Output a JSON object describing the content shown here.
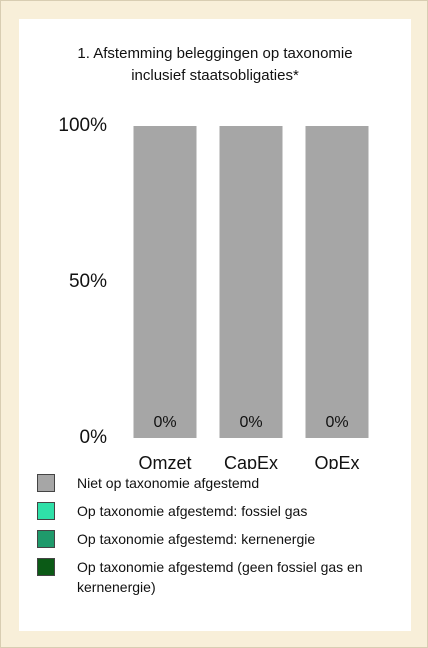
{
  "chart_data": {
    "type": "stacked_bar",
    "title": "1. Afstemming beleggingen op taxonomie inclusief staatsobligaties*",
    "categories": [
      "Omzet",
      "CapEx",
      "OpEx"
    ],
    "series": [
      {
        "name": "Niet op taxonomie afgestemd",
        "color": "#a6a6a6",
        "values": [
          100,
          100,
          100
        ]
      },
      {
        "name": "Op taxonomie afgestemd: fossiel gas",
        "color": "#2fe0a8",
        "values": [
          0,
          0,
          0
        ]
      },
      {
        "name": "Op taxonomie afgestemd: kernenergie",
        "color": "#1f9a6b",
        "values": [
          0,
          0,
          0
        ]
      },
      {
        "name": "Op taxonomie afgestemd (geen fossiel gas en kernenergie)",
        "color": "#0b5a16",
        "values": [
          0,
          0,
          0
        ],
        "value_labels": [
          "0%",
          "0%",
          "0%"
        ]
      }
    ],
    "ylim": [
      0,
      100
    ],
    "yticks": [
      {
        "value": 0,
        "label": "0%"
      },
      {
        "value": 50,
        "label": "50%"
      },
      {
        "value": 100,
        "label": "100%"
      }
    ],
    "legend": "bottom"
  }
}
